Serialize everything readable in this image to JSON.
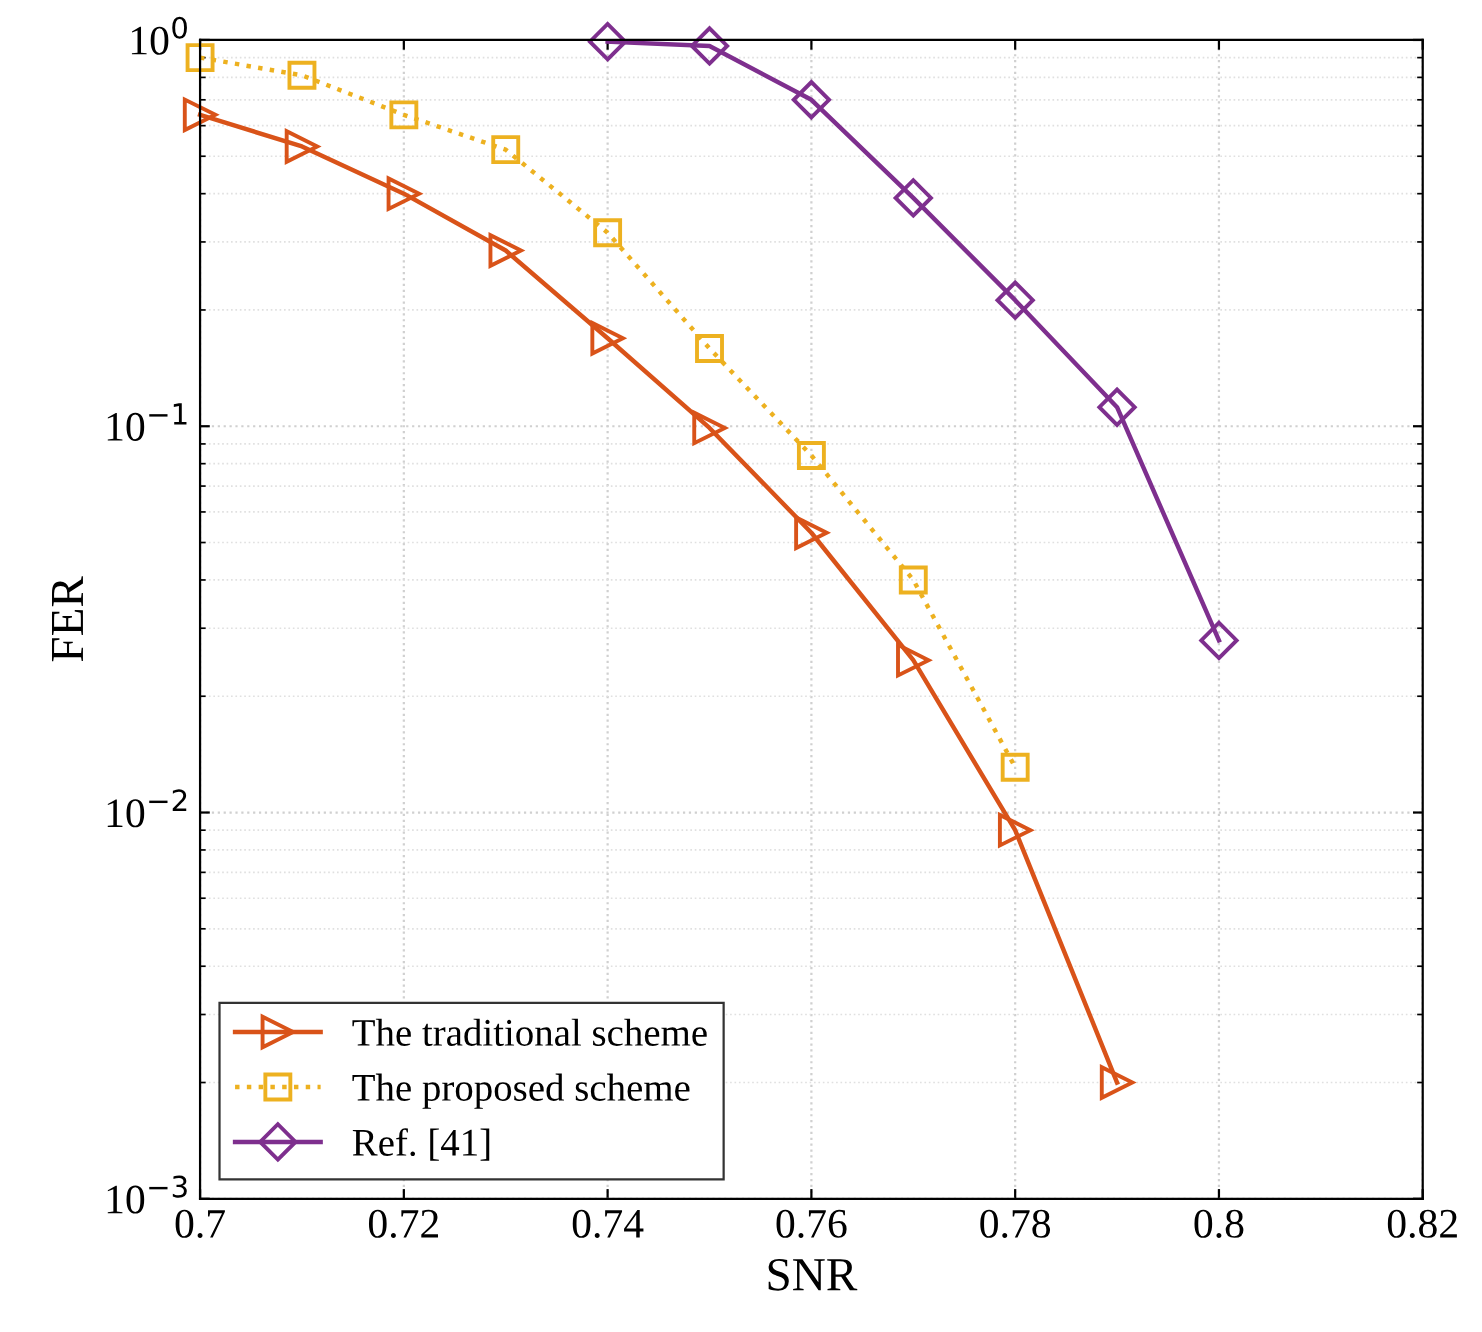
{
  "chart_data": {
    "type": "line",
    "xlabel": "SNR",
    "ylabel": "FER",
    "log": "y",
    "grid": true,
    "legend": "bottom left",
    "xlim": [
      0.7,
      0.82
    ],
    "xticks": [
      0.7,
      0.72,
      0.74,
      0.76,
      0.78,
      0.8,
      0.82
    ],
    "ylim": [
      0.001,
      1
    ],
    "yticks": [
      {
        "value": 0.001,
        "label": "10$^{−3}$"
      },
      {
        "value": 0.01,
        "label": "10$^{−2}$"
      },
      {
        "value": 0.1,
        "label": "10$^{−1}$"
      },
      {
        "value": 1,
        "label": "10$^{0}$"
      }
    ],
    "series": [
      {
        "name": "The traditional scheme",
        "color": "#d95319",
        "marker": "triangle",
        "line_style": "solid",
        "x": [
          0.7,
          0.71,
          0.72,
          0.73,
          0.74,
          0.75,
          0.76,
          0.77,
          0.78,
          0.79
        ],
        "values": [
          0.64,
          0.53,
          0.4,
          0.285,
          0.169,
          0.099,
          0.053,
          0.0248,
          0.009,
          0.002
        ]
      },
      {
        "name": "The proposed scheme",
        "color": "#edb120",
        "marker": "square",
        "line_style": "dotted",
        "x": [
          0.7,
          0.71,
          0.72,
          0.73,
          0.74,
          0.75,
          0.76,
          0.77,
          0.78
        ],
        "values": [
          0.9,
          0.81,
          0.64,
          0.52,
          0.317,
          0.159,
          0.084,
          0.04,
          0.0131
        ]
      },
      {
        "name": "Ref. [41]",
        "color": "#7e2f8e",
        "marker": "diamond",
        "line_style": "solid",
        "x": [
          0.74,
          0.75,
          0.76,
          0.77,
          0.78,
          0.79,
          0.8
        ],
        "values": [
          0.99,
          0.965,
          0.7,
          0.39,
          0.212,
          0.112,
          0.0279
        ]
      }
    ]
  }
}
